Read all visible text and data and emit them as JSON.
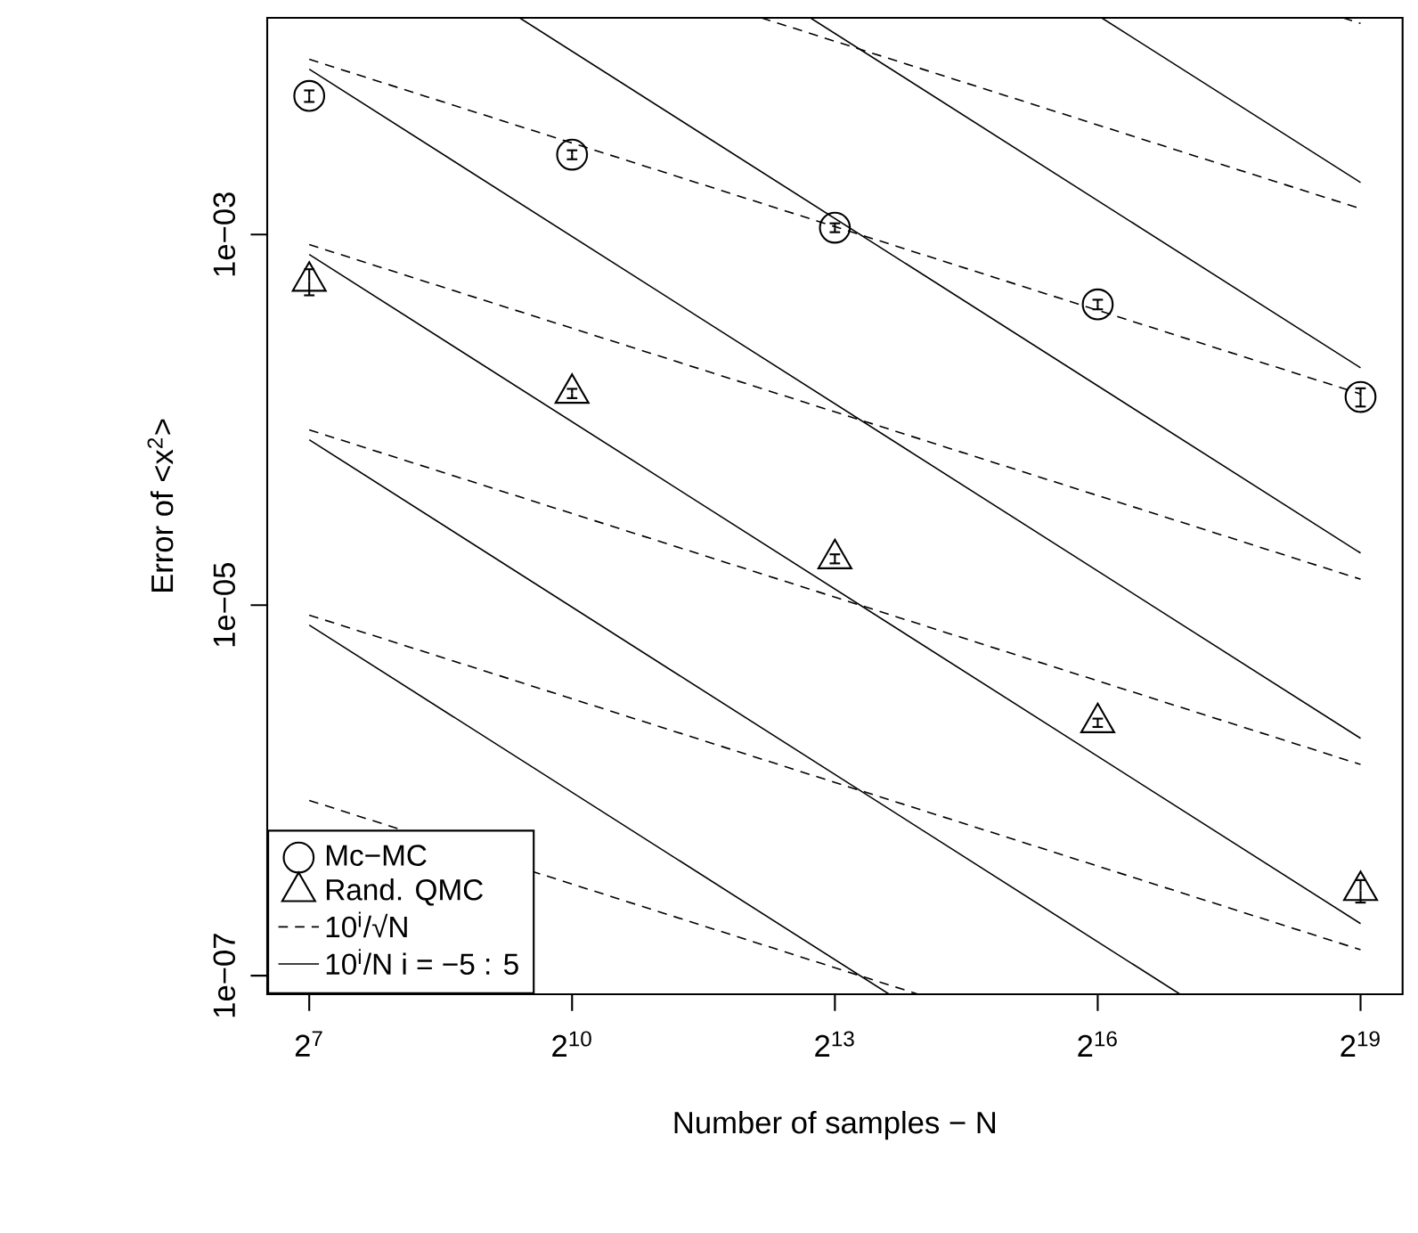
{
  "chart_data": {
    "type": "scatter",
    "xlabel": "Number of samples − N",
    "ylabel": "Error of <x$^{2}$>",
    "log": "xy",
    "xlim": [
      91.8,
      731200
    ],
    "ylim": [
      7.94e-08,
      0.01479
    ],
    "xticks": [
      {
        "value": 128,
        "label": "2$^{7}$"
      },
      {
        "value": 1024,
        "label": "2$^{10}$"
      },
      {
        "value": 8192,
        "label": "2$^{13}$"
      },
      {
        "value": 65536,
        "label": "2$^{16}$"
      },
      {
        "value": 524288,
        "label": "2$^{19}$"
      }
    ],
    "yticks": [
      {
        "value": 1e-07,
        "label": "1e−07"
      },
      {
        "value": 1e-05,
        "label": "1e−05"
      },
      {
        "value": 0.001,
        "label": "1e−03"
      }
    ],
    "legend": "bottom left",
    "series": [
      {
        "name": "Mc−MC",
        "marker": "circle",
        "color": "#000000",
        "x": [
          128,
          1024,
          8192,
          65536,
          524288
        ],
        "values": [
          0.0056,
          0.0027,
          0.00109,
          0.00042,
          0.000133
        ],
        "errors": [
          0.0004,
          0.00015,
          6e-05,
          2.5e-05,
          1.5e-05
        ]
      },
      {
        "name": "Rand. QMC",
        "marker": "triangle",
        "color": "#000000",
        "x": [
          128,
          1024,
          8192,
          65536,
          524288
        ],
        "values": [
          0.00056,
          0.000139,
          1.78e-05,
          2.32e-06,
          2.88e-07
        ],
        "errors": [
          9e-05,
          8e-06,
          1e-06,
          1.2e-07,
          4e-08
        ]
      },
      {
        "name": "10$^{i}$/√N",
        "type": "line",
        "line_style": "dashed",
        "marker": "none",
        "color": "#000000",
        "x": [
          128,
          524288
        ],
        "values": [
          0.00883,
          0.000138
        ]
      },
      {
        "name": "10$^{i}$/N    i = −5 : 5",
        "type": "line",
        "line_style": "solid",
        "marker": "none",
        "color": "#000000",
        "x": [
          128,
          524288
        ],
        "values": [
          0.00781,
          1.91e-06
        ]
      },
      {
        "type": "line",
        "line_style": "dashed",
        "marker": "none",
        "color": "#000000",
        "x": [
          456400,
          524288
        ],
        "values": [
          0.01479,
          0.0138
        ]
      },
      {
        "type": "line",
        "line_style": "dashed",
        "marker": "none",
        "color": "#000000",
        "x": [
          4576,
          524288
        ],
        "values": [
          0.01479,
          0.00138
        ]
      },
      {
        "type": "line",
        "line_style": "dashed",
        "marker": "none",
        "color": "#000000",
        "x": [
          128,
          524288
        ],
        "values": [
          0.000883,
          1.38e-05
        ]
      },
      {
        "type": "line",
        "line_style": "dashed",
        "marker": "none",
        "color": "#000000",
        "x": [
          128,
          524288
        ],
        "values": [
          8.83e-05,
          1.38e-06
        ]
      },
      {
        "type": "line",
        "line_style": "dashed",
        "marker": "none",
        "color": "#000000",
        "x": [
          128,
          524288
        ],
        "values": [
          8.83e-06,
          1.38e-07
        ]
      },
      {
        "type": "line",
        "line_style": "dashed",
        "marker": "none",
        "color": "#000000",
        "x": [
          128,
          15830
        ],
        "values": [
          8.83e-07,
          7.94e-08
        ]
      },
      {
        "type": "line",
        "line_style": "solid",
        "marker": "none",
        "color": "#000000",
        "x": [
          67600,
          524288
        ],
        "values": [
          0.01479,
          0.00191
        ]
      },
      {
        "type": "line",
        "line_style": "solid",
        "marker": "none",
        "color": "#000000",
        "x": [
          6746,
          524288
        ],
        "values": [
          0.01479,
          0.000191
        ]
      },
      {
        "type": "line",
        "line_style": "solid",
        "marker": "none",
        "color": "#000000",
        "x": [
          676,
          524288
        ],
        "values": [
          0.01479,
          1.91e-05
        ]
      },
      {
        "type": "line",
        "line_style": "solid",
        "marker": "none",
        "color": "#000000",
        "x": [
          128,
          524288
        ],
        "values": [
          0.000781,
          1.91e-07
        ]
      },
      {
        "type": "line",
        "line_style": "solid",
        "marker": "none",
        "color": "#000000",
        "x": [
          128,
          125700
        ],
        "values": [
          7.81e-05,
          7.94e-08
        ]
      },
      {
        "type": "line",
        "line_style": "solid",
        "marker": "none",
        "color": "#000000",
        "x": [
          128,
          12590
        ],
        "values": [
          7.81e-06,
          7.94e-08
        ]
      }
    ]
  }
}
